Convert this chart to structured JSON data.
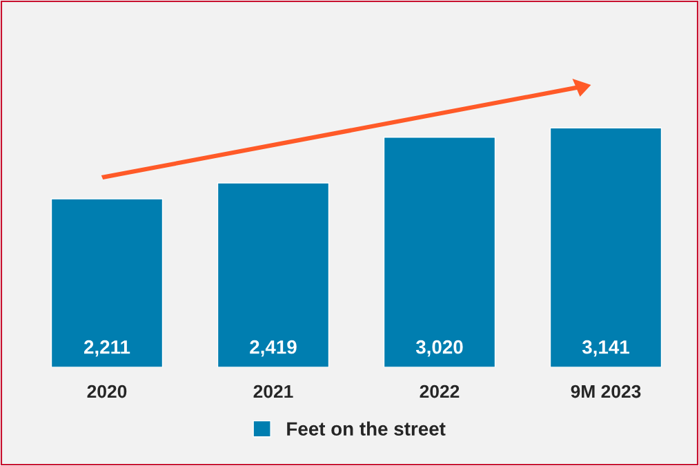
{
  "chart_data": {
    "type": "bar",
    "categories": [
      "2020",
      "2021",
      "2022",
      "9M 2023"
    ],
    "series": [
      {
        "name": "Feet on the street",
        "color": "#007eb0",
        "values": [
          2211,
          2419,
          3020,
          3141
        ],
        "value_labels": [
          "2,211",
          "2,419",
          "3,020",
          "3,141"
        ]
      }
    ],
    "legend": "bottom",
    "grid": false
  }
}
